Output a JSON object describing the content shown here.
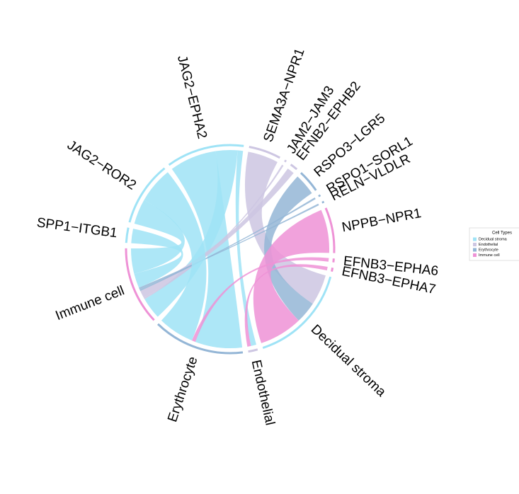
{
  "chart_data": {
    "type": "chord",
    "legend_title": "Cell Types",
    "cell_types": [
      {
        "name": "Decidual stroma",
        "color": "#9fe3f6"
      },
      {
        "name": "Endothelial",
        "color": "#cdc6e2"
      },
      {
        "name": "Erythrocyte",
        "color": "#94b6d6"
      },
      {
        "name": "Immune cell",
        "color": "#ee92d6"
      }
    ],
    "sectors": [
      {
        "name": "JAG2−EPHA2",
        "cell_type": "Decidual stroma"
      },
      {
        "name": "SEMA3A−NPR1",
        "cell_type": "Endothelial"
      },
      {
        "name": "JAM2−JAM3",
        "cell_type": "Endothelial"
      },
      {
        "name": "EFNB2−EPHB2",
        "cell_type": "Endothelial"
      },
      {
        "name": "RSPO3−LGR5",
        "cell_type": "Erythrocyte"
      },
      {
        "name": "RSPO1−SORL1",
        "cell_type": "Erythrocyte"
      },
      {
        "name": "RELN−VLDLR",
        "cell_type": "Erythrocyte"
      },
      {
        "name": "NPPB−NPR1",
        "cell_type": "Immune cell"
      },
      {
        "name": "EFNB3−EPHA6",
        "cell_type": "Immune cell"
      },
      {
        "name": "EFNB3−EPHA7",
        "cell_type": "Immune cell"
      },
      {
        "name": "Decidual stroma",
        "cell_type": "Decidual stroma"
      },
      {
        "name": "Endothelial",
        "cell_type": "Endothelial"
      },
      {
        "name": "Erythrocyte",
        "cell_type": "Erythrocyte"
      },
      {
        "name": "Immune cell",
        "cell_type": "Immune cell"
      },
      {
        "name": "SPP1−ITGB1",
        "cell_type": "Decidual stroma"
      },
      {
        "name": "JAG2−ROR2",
        "cell_type": "Decidual stroma"
      }
    ],
    "links": [
      {
        "from": "JAG2−EPHA2",
        "to": "Erythrocyte",
        "value": 26
      },
      {
        "from": "JAG2−EPHA2",
        "to": "Immune cell",
        "value": 12
      },
      {
        "from": "JAG2−EPHA2",
        "to": "Endothelial",
        "value": 3
      },
      {
        "from": "SEMA3A−NPR1",
        "to": "Decidual stroma",
        "value": 17
      },
      {
        "from": "JAM2−JAM3",
        "to": "Immune cell",
        "value": 1
      },
      {
        "from": "EFNB2−EPHB2",
        "to": "Immune cell",
        "value": 4
      },
      {
        "from": "RSPO3−LGR5",
        "to": "Decidual stroma",
        "value": 12
      },
      {
        "from": "RSPO1−SORL1",
        "to": "Immune cell",
        "value": 1
      },
      {
        "from": "RELN−VLDLR",
        "to": "Immune cell",
        "value": 1
      },
      {
        "from": "NPPB−NPR1",
        "to": "Decidual stroma",
        "value": 24
      },
      {
        "from": "EFNB3−EPHA6",
        "to": "Erythrocyte",
        "value": 2
      },
      {
        "from": "EFNB3−EPHA7",
        "to": "Endothelial",
        "value": 2
      },
      {
        "from": "SPP1−ITGB1",
        "to": "Immune cell",
        "value": 8
      },
      {
        "from": "JAG2−ROR2",
        "to": "Immune cell",
        "value": 14
      },
      {
        "from": "JAG2−ROR2",
        "to": "Erythrocyte",
        "value": 20
      }
    ]
  }
}
